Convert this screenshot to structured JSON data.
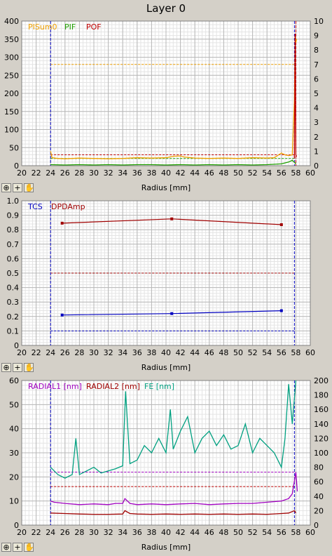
{
  "title": "Layer 0",
  "xlabel": "Radius [mm]",
  "colors": {
    "purple": "#a000c0",
    "red": "#a00000",
    "teal": "#00a080",
    "orange": "#f0a000",
    "green": "#20a000",
    "blue": "#0000c0",
    "pink": "#c00000"
  },
  "tools": {
    "zoom": "⊕",
    "plus": "+",
    "hand": "✋"
  },
  "chart_data": [
    {
      "type": "line",
      "xlim": [
        20,
        60
      ],
      "xticks": [
        "20",
        "22",
        "24",
        "26",
        "28",
        "30",
        "32",
        "34",
        "36",
        "38",
        "40",
        "42",
        "44",
        "46",
        "48",
        "50",
        "52",
        "54",
        "56",
        "58",
        "60"
      ],
      "ylim": [
        0,
        400
      ],
      "yticks": [
        "0",
        "50",
        "100",
        "150",
        "200",
        "250",
        "300",
        "350",
        "400"
      ],
      "y2lim": [
        0,
        10
      ],
      "y2ticks": [
        "0",
        "1",
        "2",
        "3",
        "4",
        "5",
        "6",
        "7",
        "8",
        "9",
        "10"
      ],
      "legend": [
        "PISum0",
        "PIF",
        "POF"
      ],
      "series": [
        {
          "name": "PISum0",
          "color": "#f0a000",
          "x": [
            24,
            24.2,
            25,
            26,
            28,
            30,
            32,
            34,
            36,
            38,
            40,
            41,
            42,
            42.5,
            44,
            46,
            48,
            50,
            52,
            54,
            55,
            56,
            56.5,
            57,
            57.5,
            57.8,
            57.9,
            58,
            58.1
          ],
          "y": [
            40,
            22,
            20,
            19,
            21,
            20,
            19,
            20,
            22,
            21,
            22,
            26,
            27,
            24,
            21,
            20,
            21,
            20,
            22,
            21,
            22,
            35,
            30,
            28,
            30,
            180,
            360,
            340,
            350
          ]
        },
        {
          "name": "PIF",
          "color": "#20a000",
          "x": [
            24,
            26,
            28,
            30,
            32,
            34,
            36,
            38,
            40,
            42,
            44,
            46,
            48,
            50,
            52,
            54,
            56,
            57,
            57.5,
            58
          ],
          "y": [
            3,
            2,
            3,
            2,
            3,
            2,
            3,
            3,
            2,
            3,
            2,
            3,
            2,
            3,
            2,
            3,
            5,
            10,
            15,
            5
          ]
        },
        {
          "name": "POF",
          "color": "#c00000",
          "x": [
            57.8,
            57.9,
            58,
            58.1
          ],
          "y": [
            20,
            365,
            30,
            25
          ]
        }
      ],
      "ref_lines": [
        {
          "y": 280,
          "color": "#f0a000"
        },
        {
          "y": 30,
          "color": "#c00000"
        },
        {
          "y": 20,
          "color": "#20a000"
        }
      ],
      "vlines": [
        {
          "x": 24,
          "color": "#0000c0"
        },
        {
          "x": 57.8,
          "color": "#0000c0"
        },
        {
          "x": 58,
          "color": "#c00000"
        }
      ]
    },
    {
      "type": "line",
      "xlim": [
        20,
        60
      ],
      "xticks": [
        "20",
        "22",
        "24",
        "26",
        "28",
        "30",
        "32",
        "34",
        "36",
        "38",
        "40",
        "42",
        "44",
        "46",
        "48",
        "50",
        "52",
        "54",
        "56",
        "58",
        "60"
      ],
      "ylim": [
        0,
        1
      ],
      "yticks": [
        "0",
        "0.1",
        "0.2",
        "0.3",
        "0.4",
        "0.5",
        "0.6",
        "0.7",
        "0.8",
        "0.9",
        "1.0"
      ],
      "legend": [
        "TCS",
        "DPDAmp"
      ],
      "series": [
        {
          "name": "TCS",
          "color": "#0000c0",
          "x": [
            25.6,
            40.8,
            56
          ],
          "y": [
            0.21,
            0.22,
            0.24
          ]
        },
        {
          "name": "DPDAmp",
          "color": "#a00000",
          "x": [
            25.6,
            40.8,
            56
          ],
          "y": [
            0.845,
            0.875,
            0.835
          ]
        }
      ],
      "ref_lines": [
        {
          "y": 0.5,
          "color": "#a00000"
        },
        {
          "y": 0.1,
          "color": "#0000c0"
        }
      ],
      "vlines": [
        {
          "x": 24,
          "color": "#0000c0"
        },
        {
          "x": 57.8,
          "color": "#0000c0"
        }
      ]
    },
    {
      "type": "line",
      "xlim": [
        20,
        60
      ],
      "xticks": [
        "20",
        "22",
        "24",
        "26",
        "28",
        "30",
        "32",
        "34",
        "36",
        "38",
        "40",
        "42",
        "44",
        "46",
        "48",
        "50",
        "52",
        "54",
        "56",
        "58",
        "60"
      ],
      "ylim": [
        0,
        60
      ],
      "yticks": [
        "0",
        "10",
        "20",
        "30",
        "40",
        "50",
        "60"
      ],
      "y2lim": [
        0,
        200
      ],
      "y2ticks": [
        "0",
        "20",
        "40",
        "60",
        "80",
        "100",
        "120",
        "140",
        "160",
        "180",
        "200"
      ],
      "legend": [
        "RADIAL1 [nm]",
        "RADIAL2 [nm]",
        "FE [nm]"
      ],
      "series": [
        {
          "name": "RADIAL1 [nm]",
          "color": "#a000c0",
          "x": [
            24,
            24.5,
            26,
            28,
            30,
            32,
            33,
            34,
            34.3,
            35,
            36,
            38,
            40,
            42,
            44,
            46,
            48,
            50,
            52,
            54,
            56,
            57,
            57.5,
            58,
            58.2
          ],
          "y": [
            10,
            9.5,
            9,
            8.5,
            8.8,
            8.5,
            9,
            9,
            11,
            9,
            8.5,
            8.8,
            8.5,
            8.8,
            9,
            8.5,
            8.8,
            9,
            9,
            9.5,
            10,
            11,
            13,
            22,
            14
          ]
        },
        {
          "name": "RADIAL2 [nm]",
          "color": "#a00000",
          "x": [
            24,
            26,
            28,
            30,
            32,
            34,
            34.3,
            35,
            36,
            38,
            40,
            42,
            44,
            46,
            48,
            50,
            52,
            54,
            56,
            57,
            57.8,
            58
          ],
          "y": [
            5,
            4.8,
            4.6,
            4.5,
            4.5,
            4.6,
            6,
            4.8,
            4.6,
            4.5,
            4.6,
            4.5,
            4.6,
            4.5,
            4.6,
            4.5,
            4.6,
            4.5,
            4.8,
            5,
            6,
            5
          ]
        },
        {
          "name": "FE [nm]",
          "color": "#00a080",
          "x": [
            24,
            25,
            26,
            27,
            27.5,
            28,
            29,
            30,
            31,
            32,
            33,
            34,
            34.4,
            35,
            36,
            37,
            38,
            39,
            40,
            40.6,
            41,
            42,
            43,
            44,
            45,
            46,
            47,
            48,
            49,
            50,
            51,
            52,
            53,
            54,
            55,
            56,
            56.5,
            57,
            57.5,
            58
          ],
          "y": [
            80,
            70,
            65,
            70,
            120,
            70,
            75,
            80,
            72,
            75,
            78,
            82,
            185,
            85,
            90,
            110,
            100,
            120,
            100,
            160,
            105,
            130,
            150,
            100,
            120,
            130,
            110,
            125,
            105,
            110,
            140,
            100,
            120,
            110,
            100,
            80,
            120,
            195,
            140,
            200
          ]
        }
      ],
      "ref_lines": [
        {
          "y": 22,
          "color": "#a000c0"
        },
        {
          "y": 16,
          "color": "#c00000"
        }
      ],
      "vlines": [
        {
          "x": 24,
          "color": "#0000c0"
        },
        {
          "x": 57.8,
          "color": "#0000c0"
        }
      ]
    }
  ]
}
